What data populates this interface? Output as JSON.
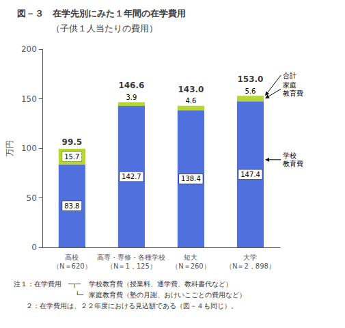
{
  "chart_data": {
    "type": "bar",
    "stacked": true,
    "title": "図－３　在学先別にみた１年間の在学費用",
    "subtitle": "（子供１人当たりの費用）",
    "y_label": "万円",
    "categories": [
      "高校\n（N＝620）",
      "高専・専修・各種学校\n（N＝1，125）",
      "短大\n（N＝260）",
      "大学\n（N＝2，898）"
    ],
    "series": [
      {
        "name": "学校\n教育費",
        "values": [
          83.8,
          142.7,
          138.4,
          147.4
        ]
      },
      {
        "name": "家庭\n教育費",
        "values": [
          15.7,
          3.9,
          4.6,
          5.6
        ]
      }
    ],
    "totals": [
      99.5,
      146.6,
      143.0,
      153.0
    ],
    "total_labels": [
      "99.5",
      "146.6",
      "143.0",
      "153.0"
    ],
    "totals_name": "合計",
    "data_labels": true,
    "ylim": [
      0,
      200
    ],
    "yticks": [
      0,
      50,
      100,
      150,
      200
    ],
    "grid": false,
    "notes": [
      {
        "label": "注１：在学費用",
        "bracket": "─┬─",
        "text": "学校教育費（授業料、通学費、教科書代など）"
      },
      {
        "bracket": "　└─",
        "text": "家庭教育費（塾の月謝、おけいこごとの費用など）"
      },
      {
        "text": "　２：在学費用は、２２年度における見込額である（図－４も同じ）。"
      }
    ]
  }
}
